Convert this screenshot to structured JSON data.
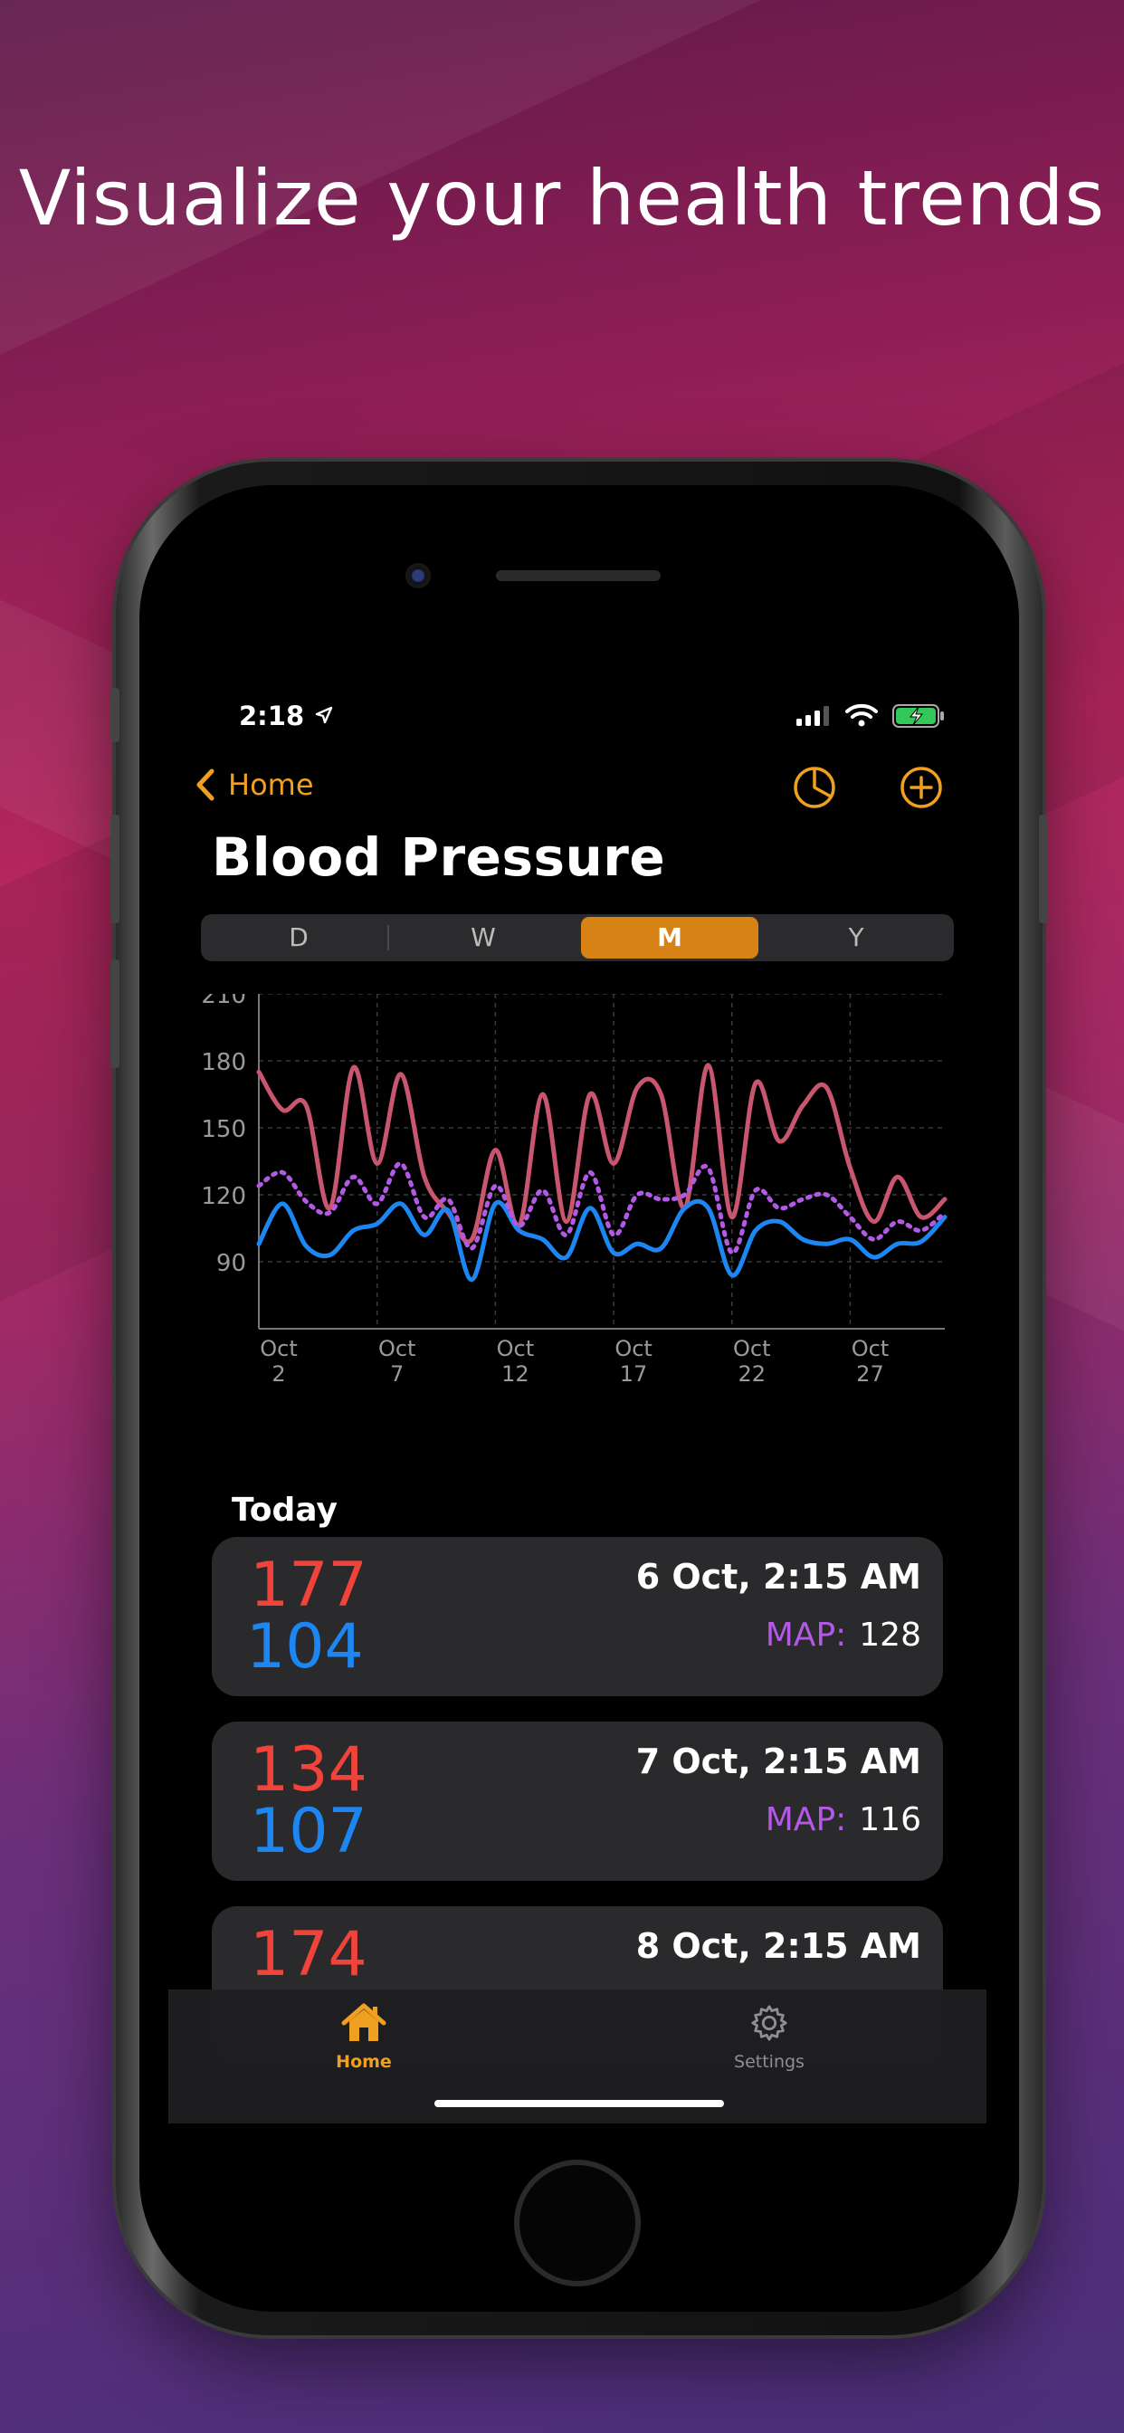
{
  "headline": "Visualize your health trends",
  "status": {
    "time": "2:18"
  },
  "nav": {
    "back_label": "Home"
  },
  "page": {
    "title": "Blood Pressure"
  },
  "segments": [
    {
      "label": "D",
      "active": false
    },
    {
      "label": "W",
      "active": false
    },
    {
      "label": "M",
      "active": true
    },
    {
      "label": "Y",
      "active": false
    }
  ],
  "colors": {
    "accent": "#D68214",
    "systolic": "#F2433B",
    "diastolic": "#1C86F2",
    "map": "#B359E6",
    "systolic_line": "#C8566E"
  },
  "chart_data": {
    "type": "line",
    "ylim": [
      60,
      210
    ],
    "yticks": [
      90,
      120,
      150,
      180,
      210
    ],
    "ytick_labels": [
      "90",
      "120",
      "150",
      "180",
      "210"
    ],
    "xlim": [
      2,
      31
    ],
    "xticks": [
      2,
      7,
      12,
      17,
      22,
      27
    ],
    "xtick_labels": [
      [
        "Oct",
        "2"
      ],
      [
        "Oct",
        "7"
      ],
      [
        "Oct",
        "12"
      ],
      [
        "Oct",
        "17"
      ],
      [
        "Oct",
        "22"
      ],
      [
        "Oct",
        "27"
      ]
    ],
    "grid": true,
    "x": [
      2,
      3,
      4,
      5,
      6,
      7,
      8,
      9,
      10,
      11,
      12,
      13,
      14,
      15,
      16,
      17,
      18,
      19,
      20,
      21,
      22,
      23,
      24,
      25,
      26,
      27,
      28,
      29,
      30,
      31
    ],
    "series": [
      {
        "key": "systolic",
        "style": "solid",
        "values": [
          175,
          158,
          160,
          114,
          177,
          134,
          174,
          128,
          112,
          100,
          140,
          106,
          165,
          108,
          165,
          134,
          168,
          165,
          114,
          178,
          110,
          170,
          144,
          160,
          168,
          132,
          108,
          128,
          110,
          118
        ]
      },
      {
        "key": "diastolic",
        "style": "solid",
        "values": [
          98,
          116,
          97,
          93,
          104,
          107,
          116,
          102,
          113,
          82,
          116,
          104,
          100,
          92,
          114,
          94,
          98,
          96,
          114,
          114,
          84,
          104,
          108,
          100,
          98,
          100,
          92,
          98,
          99,
          110
        ]
      },
      {
        "key": "map",
        "style": "dotted",
        "values": [
          124,
          130,
          117,
          112,
          128,
          116,
          134,
          110,
          118,
          96,
          124,
          106,
          122,
          102,
          130,
          102,
          120,
          118,
          120,
          132,
          94,
          122,
          114,
          118,
          120,
          110,
          100,
          108,
          104,
          112
        ]
      }
    ]
  },
  "list": {
    "section_title": "Today",
    "map_label": "MAP:",
    "readings": [
      {
        "systolic": "177",
        "diastolic": "104",
        "datetime": "6 Oct, 2:15 AM",
        "map": "128"
      },
      {
        "systolic": "134",
        "diastolic": "107",
        "datetime": "7 Oct, 2:15 AM",
        "map": "116"
      },
      {
        "systolic": "174",
        "diastolic": "",
        "datetime": "8 Oct, 2:15 AM",
        "map": ""
      }
    ]
  },
  "tabbar": {
    "items": [
      {
        "label": "Home",
        "icon": "house-icon",
        "active": true
      },
      {
        "label": "Settings",
        "icon": "gear-icon",
        "active": false
      }
    ]
  }
}
